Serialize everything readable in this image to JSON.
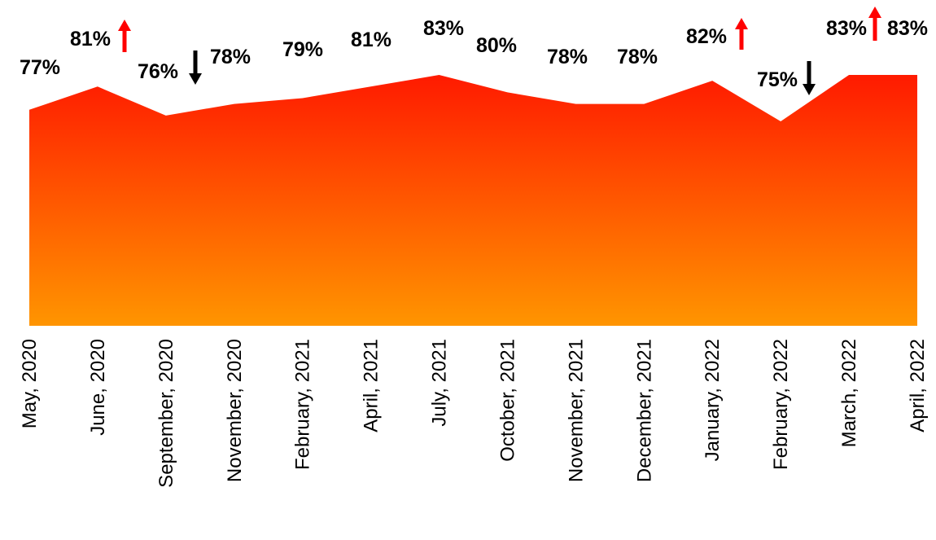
{
  "chart_data": {
    "type": "area",
    "categories": [
      "May, 2020",
      "June, 2020",
      "September, 2020",
      "November, 2020",
      "February, 2021",
      "April, 2021",
      "July, 2021",
      "October, 2021",
      "November, 2021",
      "December, 2021",
      "January, 2022",
      "February, 2022",
      "March, 2022",
      "April, 2022"
    ],
    "values": [
      77,
      81,
      76,
      78,
      79,
      81,
      83,
      80,
      78,
      78,
      82,
      75,
      83,
      83
    ],
    "labels": [
      "77%",
      "81%",
      "76%",
      "78%",
      "79%",
      "81%",
      "83%",
      "80%",
      "78%",
      "78%",
      "82%",
      "75%",
      "83%",
      "83%"
    ],
    "trend_markers": [
      "",
      "up",
      "down",
      "",
      "",
      "",
      "",
      "",
      "",
      "",
      "up",
      "down",
      "up",
      ""
    ],
    "title": "",
    "xlabel": "",
    "ylabel": "",
    "ylim": [
      40,
      87
    ],
    "grid": false,
    "legend": "none",
    "colors": {
      "fill_top": "#ff1a00",
      "fill_bottom": "#ff9500",
      "up_arrow": "#ff0000",
      "down_arrow": "#000000",
      "text": "#000000"
    }
  }
}
